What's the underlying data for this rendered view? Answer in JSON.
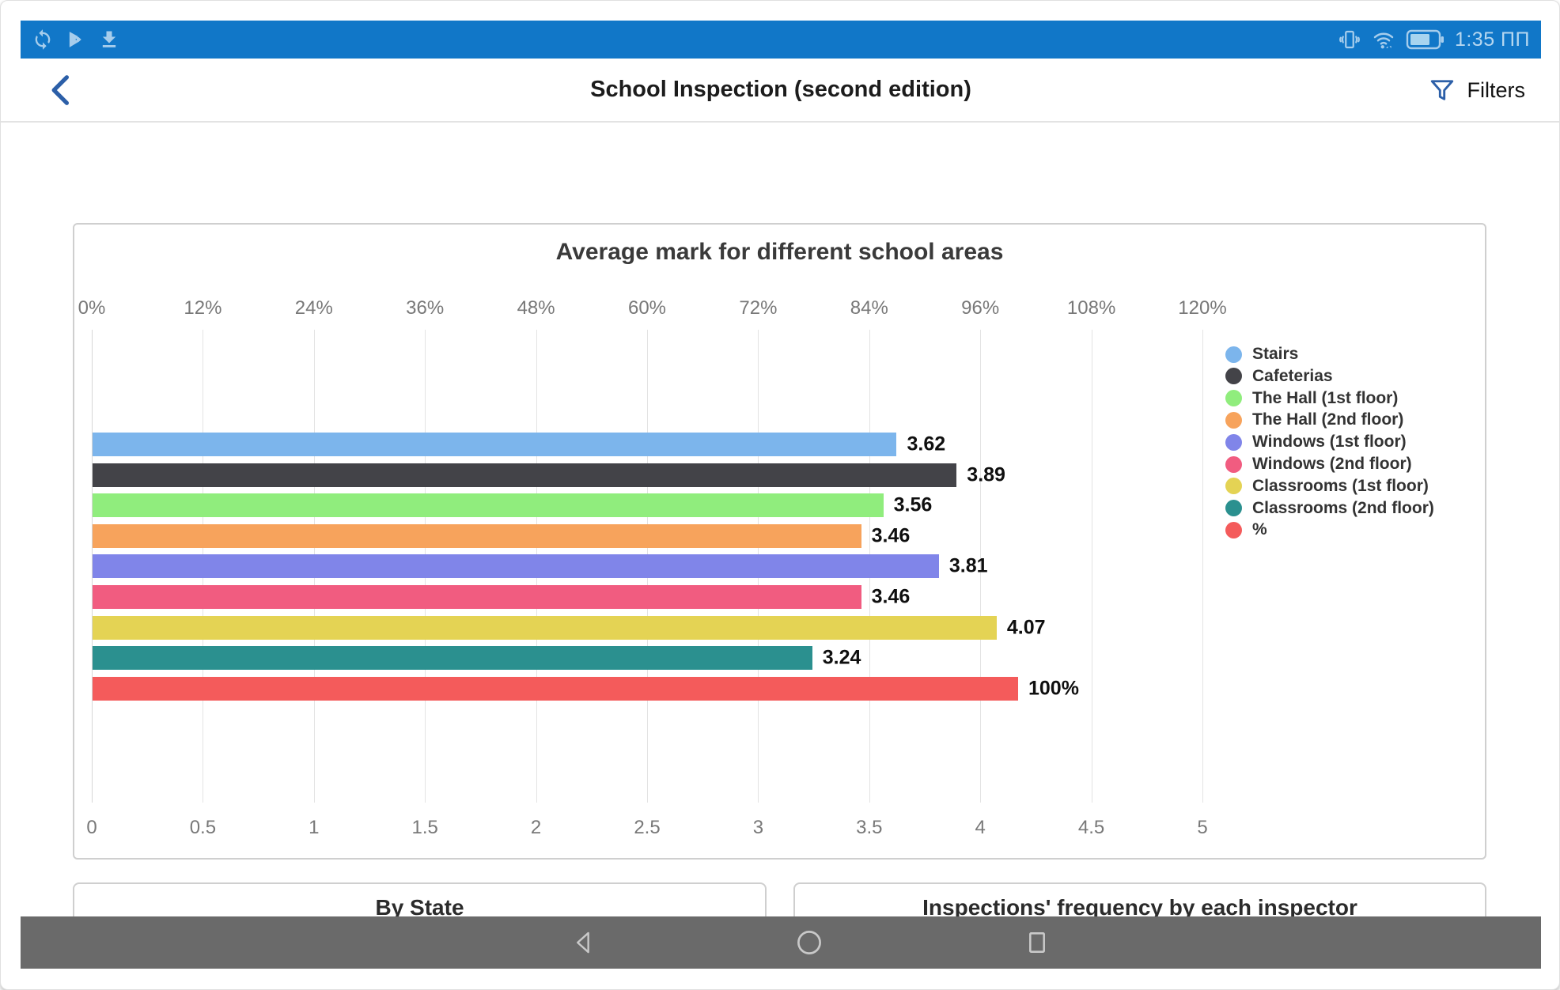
{
  "status_bar": {
    "time": "1:35 ПП",
    "bg_color": "#1177c8",
    "icon_color": "#a6cdec",
    "left_icons": [
      "sync-icon",
      "play-store-icon",
      "download-icon"
    ],
    "right_icons": [
      "vibrate-icon",
      "wifi-icon",
      "battery-icon"
    ]
  },
  "header": {
    "title": "School Inspection (second edition)",
    "filters_label": "Filters",
    "accent_color": "#2c5fa8"
  },
  "chart_data": {
    "type": "bar",
    "orientation": "horizontal",
    "title": "Average mark for different school areas",
    "legend_position": "right",
    "grid": true,
    "top_axis": {
      "min": 0,
      "max": 120,
      "unit": "%",
      "ticks": [
        "0%",
        "12%",
        "24%",
        "36%",
        "48%",
        "60%",
        "72%",
        "84%",
        "96%",
        "108%",
        "120%"
      ]
    },
    "bottom_axis": {
      "min": 0,
      "max": 5,
      "ticks": [
        "0",
        "0.5",
        "1",
        "1.5",
        "2",
        "2.5",
        "3",
        "3.5",
        "4",
        "4.5",
        "5"
      ]
    },
    "series": [
      {
        "name": "Stairs",
        "value": 3.62,
        "label": "3.62",
        "axis": "bottom",
        "color": "#7cb5ec"
      },
      {
        "name": "Cafeterias",
        "value": 3.89,
        "label": "3.89",
        "axis": "bottom",
        "color": "#434348"
      },
      {
        "name": "The Hall (1st floor)",
        "value": 3.56,
        "label": "3.56",
        "axis": "bottom",
        "color": "#90ed7d"
      },
      {
        "name": "The Hall (2nd floor)",
        "value": 3.46,
        "label": "3.46",
        "axis": "bottom",
        "color": "#f7a35c"
      },
      {
        "name": "Windows (1st floor)",
        "value": 3.81,
        "label": "3.81",
        "axis": "bottom",
        "color": "#8085e9"
      },
      {
        "name": "Windows (2nd floor)",
        "value": 3.46,
        "label": "3.46",
        "axis": "bottom",
        "color": "#f15c80"
      },
      {
        "name": "Classrooms (1st floor)",
        "value": 4.07,
        "label": "4.07",
        "axis": "bottom",
        "color": "#e4d354"
      },
      {
        "name": "Classrooms (2nd floor)",
        "value": 3.24,
        "label": "3.24",
        "axis": "bottom",
        "color": "#2b908f"
      },
      {
        "name": "%",
        "value": 100,
        "label": "100%",
        "axis": "top",
        "color": "#f45b5b"
      }
    ]
  },
  "bottom_cards": {
    "left_title": "By State",
    "right_title": "Inspections' frequency by each inspector"
  },
  "nav_bar": {
    "bg_color": "#6a6a6a",
    "icons": [
      "nav-back-icon",
      "nav-home-icon",
      "nav-recents-icon"
    ]
  }
}
